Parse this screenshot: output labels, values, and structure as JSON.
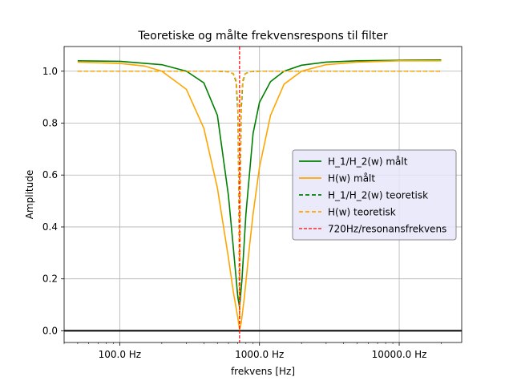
{
  "chart_data": {
    "type": "line",
    "title": "Teoretiske og målte frekvensrespons til filter",
    "xlabel": "frekvens [Hz]",
    "ylabel": "Amplitude",
    "xscale": "log",
    "xlim": [
      40,
      28000
    ],
    "ylim": [
      -0.045,
      1.095
    ],
    "grid": true,
    "legend_position": "center-right",
    "x_ticks": [
      {
        "value": 100,
        "label": "100.0 Hz"
      },
      {
        "value": 1000,
        "label": "1000.0 Hz"
      },
      {
        "value": 10000,
        "label": "10000.0 Hz"
      }
    ],
    "y_ticks": [
      {
        "value": 0.0,
        "label": "0.0"
      },
      {
        "value": 0.2,
        "label": "0.2"
      },
      {
        "value": 0.4,
        "label": "0.4"
      },
      {
        "value": 0.6,
        "label": "0.6"
      },
      {
        "value": 0.8,
        "label": "0.8"
      },
      {
        "value": 1.0,
        "label": "1.0"
      }
    ],
    "series": [
      {
        "name": "H_1/H_2(w) målt",
        "color": "#008000",
        "dash": "solid",
        "x": [
          50,
          100,
          200,
          300,
          400,
          500,
          600,
          650,
          700,
          720,
          750,
          800,
          900,
          1000,
          1200,
          1500,
          2000,
          3000,
          5000,
          10000,
          20000
        ],
        "y": [
          1.04,
          1.038,
          1.025,
          1.0,
          0.955,
          0.83,
          0.52,
          0.32,
          0.13,
          0.09,
          0.2,
          0.45,
          0.76,
          0.88,
          0.96,
          1.0,
          1.023,
          1.035,
          1.04,
          1.042,
          1.043
        ]
      },
      {
        "name": "H(w) målt",
        "color": "#FFA500",
        "dash": "solid",
        "x": [
          50,
          100,
          150,
          200,
          300,
          400,
          500,
          600,
          650,
          700,
          720,
          740,
          780,
          850,
          900,
          1000,
          1200,
          1500,
          2000,
          3000,
          5000,
          10000,
          20000
        ],
        "y": [
          1.035,
          1.03,
          1.02,
          1.0,
          0.93,
          0.78,
          0.55,
          0.28,
          0.15,
          0.05,
          0.005,
          0.03,
          0.13,
          0.33,
          0.45,
          0.63,
          0.83,
          0.95,
          1.0,
          1.025,
          1.035,
          1.04,
          1.04
        ]
      },
      {
        "name": "H_1/H_2(w) teoretisk",
        "color": "#008000",
        "dash": "dashed",
        "x": [
          50,
          500,
          600,
          650,
          680,
          700,
          710,
          720,
          730,
          740,
          760,
          790,
          850,
          1000,
          20000
        ],
        "y": [
          1.0,
          1.0,
          0.998,
          0.99,
          0.96,
          0.85,
          0.6,
          0.03,
          0.6,
          0.85,
          0.96,
          0.99,
          0.998,
          1.0,
          1.0
        ]
      },
      {
        "name": "H(w) teoretisk",
        "color": "#FFA500",
        "dash": "dashed",
        "x": [
          50,
          500,
          600,
          650,
          680,
          700,
          710,
          720,
          730,
          740,
          760,
          790,
          850,
          1000,
          20000
        ],
        "y": [
          1.0,
          1.0,
          0.998,
          0.99,
          0.965,
          0.88,
          0.66,
          0.03,
          0.66,
          0.88,
          0.965,
          0.99,
          0.998,
          1.0,
          1.0
        ]
      }
    ],
    "vline": {
      "name": "720Hz/resonansfrekvens",
      "x": 720,
      "color": "#FF0000",
      "dash": "dashed"
    },
    "hline": {
      "y": 0.0,
      "color": "#000000"
    }
  }
}
